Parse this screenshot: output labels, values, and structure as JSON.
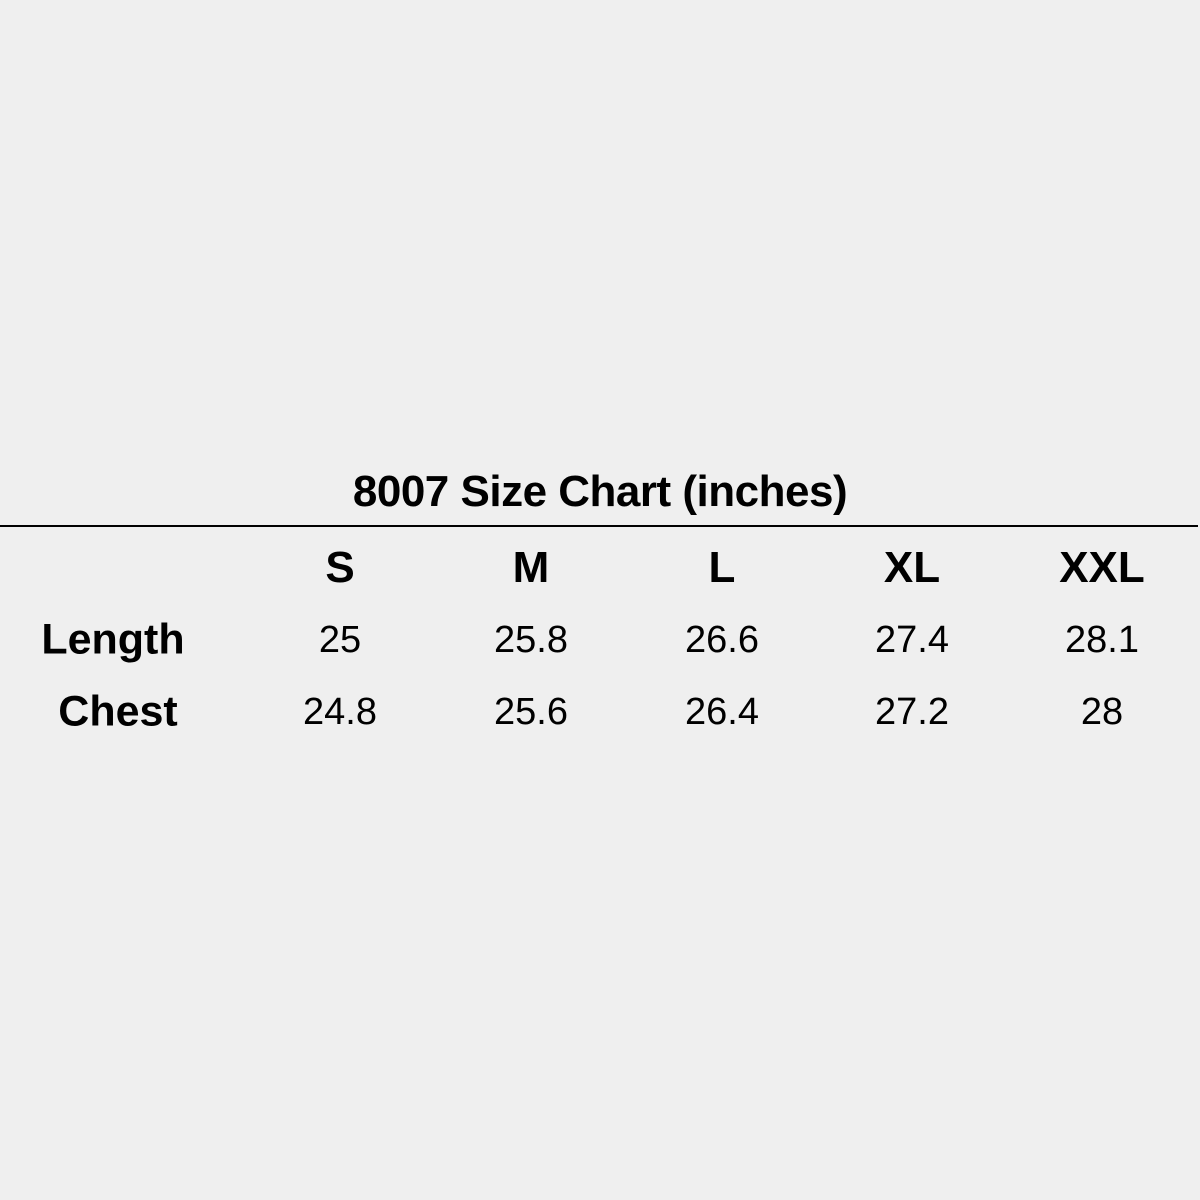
{
  "title": "8007 Size Chart (inches)",
  "sizes": [
    "S",
    "M",
    "L",
    "XL",
    "XXL"
  ],
  "rows": [
    {
      "label": "Length",
      "values": [
        "25",
        "25.8",
        "26.6",
        "27.4",
        "28.1"
      ]
    },
    {
      "label": "Chest",
      "values": [
        "24.8",
        "25.6",
        "26.4",
        "27.2",
        "28"
      ]
    }
  ]
}
